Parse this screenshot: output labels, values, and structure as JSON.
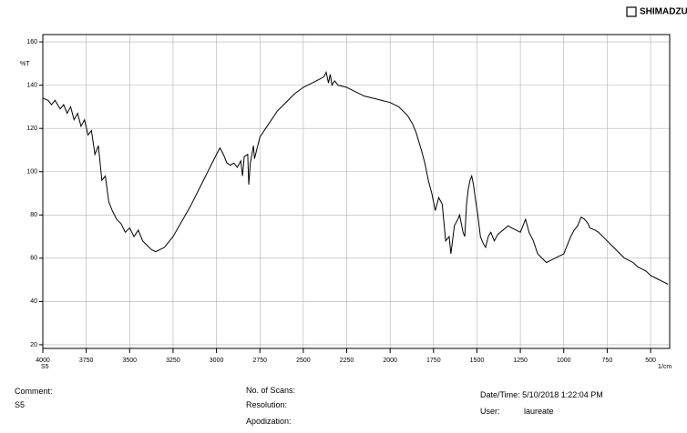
{
  "header": {
    "logo": "SHIMADZU"
  },
  "chart_data": {
    "type": "line",
    "y_label": "%T",
    "x_label": "1/cm",
    "sample_label": "S5",
    "xlim": [
      4000,
      390
    ],
    "ylim": [
      18.3,
      163.4
    ],
    "xticks": [
      4000,
      3750,
      3500,
      3250,
      3000,
      2750,
      2500,
      2250,
      2000,
      1750,
      1500,
      1250,
      1000,
      750,
      500
    ],
    "yticks": [
      20,
      40,
      60,
      80,
      100,
      120,
      140,
      160
    ],
    "grid": true,
    "series": [
      {
        "name": "S5",
        "color": "#000000",
        "x": [
          4000,
          3970,
          3950,
          3930,
          3900,
          3880,
          3860,
          3840,
          3820,
          3800,
          3780,
          3760,
          3740,
          3720,
          3700,
          3680,
          3660,
          3640,
          3620,
          3600,
          3575,
          3550,
          3525,
          3500,
          3475,
          3450,
          3425,
          3400,
          3375,
          3350,
          3300,
          3250,
          3200,
          3150,
          3100,
          3050,
          3000,
          2980,
          2960,
          2940,
          2920,
          2900,
          2880,
          2860,
          2850,
          2840,
          2820,
          2814,
          2805,
          2787,
          2781,
          2750,
          2700,
          2650,
          2600,
          2550,
          2500,
          2450,
          2400,
          2380,
          2368,
          2355,
          2345,
          2335,
          2320,
          2300,
          2250,
          2200,
          2150,
          2100,
          2050,
          2000,
          1950,
          1900,
          1870,
          1850,
          1820,
          1800,
          1780,
          1760,
          1740,
          1720,
          1700,
          1680,
          1660,
          1650,
          1630,
          1610,
          1600,
          1580,
          1570,
          1560,
          1550,
          1540,
          1530,
          1520,
          1510,
          1495,
          1480,
          1465,
          1450,
          1435,
          1420,
          1400,
          1380,
          1350,
          1320,
          1300,
          1275,
          1250,
          1220,
          1200,
          1175,
          1150,
          1125,
          1100,
          1075,
          1050,
          1025,
          1000,
          980,
          960,
          940,
          920,
          900,
          880,
          860,
          850,
          820,
          800,
          775,
          750,
          725,
          700,
          675,
          650,
          625,
          600,
          575,
          550,
          525,
          500,
          475,
          450,
          425,
          400
        ],
        "values": [
          134,
          133,
          131,
          133,
          129,
          131,
          127,
          130,
          124,
          127,
          121,
          124,
          117,
          119,
          108,
          112,
          96,
          98,
          86,
          82,
          78,
          76,
          72,
          74,
          70,
          73,
          68,
          66,
          64,
          63,
          65,
          70,
          77,
          84,
          92,
          100,
          108,
          111,
          108,
          104,
          103,
          104,
          102,
          105,
          98,
          107,
          108,
          94,
          104,
          112,
          106,
          116,
          122,
          128,
          132,
          136,
          139,
          141,
          143,
          144,
          146,
          141,
          145,
          140,
          142,
          140,
          139,
          137,
          135,
          134,
          133,
          132,
          130,
          126,
          122,
          118,
          110,
          104,
          96,
          90,
          82,
          88,
          85,
          68,
          70,
          62,
          75,
          78,
          80,
          72,
          70,
          85,
          92,
          96,
          98,
          94,
          88,
          80,
          70,
          67,
          65,
          70,
          72,
          68,
          71,
          73,
          75,
          74,
          73,
          72,
          78,
          72,
          68,
          62,
          60,
          58,
          59,
          60,
          61,
          62,
          66,
          70,
          73,
          75,
          79,
          78,
          76,
          74,
          73,
          72,
          70,
          68,
          66,
          64,
          62,
          60,
          59,
          58,
          56,
          55,
          54,
          52,
          51,
          50,
          49,
          48
        ]
      }
    ]
  },
  "footer": {
    "comment_label": "Comment:",
    "comment": "S5",
    "scans_label": "No. of Scans:",
    "resolution_label": "Resolution:",
    "apodization_label": "Apodization:",
    "datetime": "Date/Time: 5/10/2018 1:22:04 PM",
    "user_label": "User:",
    "user": "laureate"
  }
}
